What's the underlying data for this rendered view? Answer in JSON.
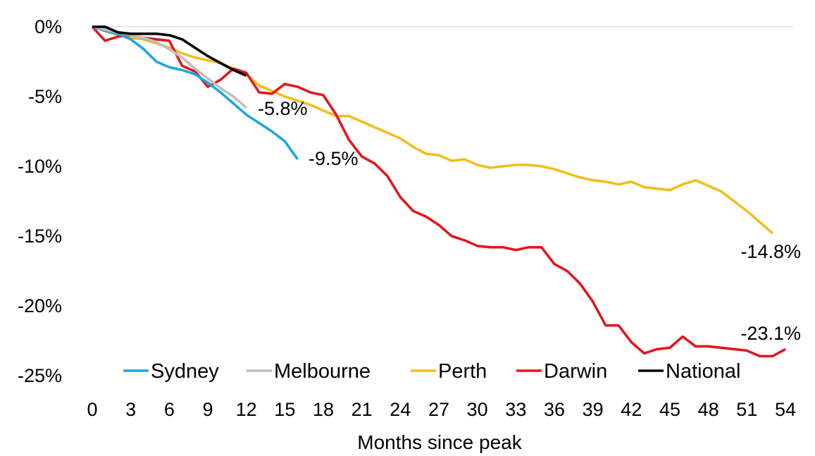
{
  "chart_data": {
    "type": "line",
    "title": "",
    "xlabel": "Months since peak",
    "ylabel": "",
    "xlim": [
      0,
      54
    ],
    "ylim": [
      -25,
      0
    ],
    "x_ticks": [
      0,
      3,
      6,
      9,
      12,
      15,
      18,
      21,
      24,
      27,
      30,
      33,
      36,
      39,
      42,
      45,
      48,
      51,
      54
    ],
    "y_ticks": [
      "0%",
      "-5%",
      "-10%",
      "-15%",
      "-20%",
      "-25%"
    ],
    "y_tick_values": [
      0,
      -5,
      -10,
      -15,
      -20,
      -25
    ],
    "gridlines": "horizontal at 0% only",
    "legend_position": "bottom",
    "series": [
      {
        "name": "Sydney",
        "color": "#1FA7DF",
        "end_label": "-9.5%",
        "x": [
          0,
          1,
          2,
          3,
          4,
          5,
          6,
          7,
          8,
          9,
          10,
          11,
          12,
          13,
          14,
          15,
          16
        ],
        "values": [
          0,
          -0.3,
          -0.5,
          -0.9,
          -1.6,
          -2.5,
          -2.9,
          -3.1,
          -3.4,
          -4.0,
          -4.7,
          -5.5,
          -6.3,
          -6.9,
          -7.5,
          -8.2,
          -9.5
        ]
      },
      {
        "name": "Melbourne",
        "color": "#BFBFBF",
        "end_label": "-5.8%",
        "x": [
          0,
          1,
          2,
          3,
          4,
          5,
          6,
          7,
          8,
          9,
          10,
          11,
          12
        ],
        "values": [
          0,
          -0.2,
          -0.4,
          -0.6,
          -0.8,
          -1.1,
          -1.6,
          -2.2,
          -3.0,
          -3.7,
          -4.4,
          -5.0,
          -5.8
        ]
      },
      {
        "name": "Perth",
        "color": "#F2BE1A",
        "end_label": "-14.8%",
        "x": [
          0,
          1,
          2,
          3,
          4,
          5,
          6,
          7,
          8,
          9,
          10,
          11,
          12,
          13,
          14,
          15,
          16,
          17,
          18,
          19,
          20,
          21,
          22,
          23,
          24,
          25,
          26,
          27,
          28,
          29,
          30,
          31,
          32,
          33,
          34,
          35,
          36,
          37,
          38,
          39,
          40,
          41,
          42,
          43,
          44,
          45,
          46,
          47,
          48,
          49,
          50,
          51,
          52,
          53
        ],
        "values": [
          0,
          -0.3,
          -0.6,
          -0.8,
          -0.9,
          -1.2,
          -1.5,
          -1.9,
          -2.2,
          -2.4,
          -2.6,
          -3.0,
          -3.4,
          -4.2,
          -4.6,
          -5.0,
          -5.3,
          -5.6,
          -6.0,
          -6.4,
          -6.4,
          -6.8,
          -7.2,
          -7.6,
          -8.0,
          -8.6,
          -9.1,
          -9.2,
          -9.6,
          -9.5,
          -9.9,
          -10.1,
          -10.0,
          -9.9,
          -9.9,
          -10.0,
          -10.2,
          -10.5,
          -10.8,
          -11.0,
          -11.1,
          -11.3,
          -11.1,
          -11.5,
          -11.6,
          -11.7,
          -11.3,
          -11.0,
          -11.4,
          -11.8,
          -12.5,
          -13.2,
          -14.0,
          -14.8
        ]
      },
      {
        "name": "Darwin",
        "color": "#E3171B",
        "end_label": "-23.1%",
        "x": [
          0,
          1,
          2,
          3,
          4,
          5,
          6,
          7,
          8,
          9,
          10,
          11,
          12,
          13,
          14,
          15,
          16,
          17,
          18,
          19,
          20,
          21,
          22,
          23,
          24,
          25,
          26,
          27,
          28,
          29,
          30,
          31,
          32,
          33,
          34,
          35,
          36,
          37,
          38,
          39,
          40,
          41,
          42,
          43,
          44,
          45,
          46,
          47,
          48,
          49,
          50,
          51,
          52,
          53,
          54
        ],
        "values": [
          0,
          -1.0,
          -0.7,
          -0.6,
          -0.8,
          -0.9,
          -1.0,
          -2.8,
          -3.2,
          -4.3,
          -3.8,
          -3.0,
          -3.3,
          -4.7,
          -4.8,
          -4.1,
          -4.3,
          -4.7,
          -4.9,
          -6.3,
          -8.1,
          -9.3,
          -9.8,
          -10.7,
          -12.2,
          -13.2,
          -13.6,
          -14.2,
          -15.0,
          -15.3,
          -15.7,
          -15.8,
          -15.8,
          -16.0,
          -15.8,
          -15.8,
          -17.0,
          -17.5,
          -18.4,
          -19.7,
          -21.4,
          -21.4,
          -22.6,
          -23.4,
          -23.1,
          -23.0,
          -22.2,
          -22.9,
          -22.9,
          -23.0,
          -23.1,
          -23.2,
          -23.6,
          -23.6,
          -23.1
        ]
      },
      {
        "name": "National",
        "color": "#000000",
        "end_label": "",
        "x": [
          0,
          1,
          2,
          3,
          4,
          5,
          6,
          7,
          8,
          9,
          10,
          11,
          12
        ],
        "values": [
          0,
          0,
          -0.4,
          -0.5,
          -0.5,
          -0.5,
          -0.6,
          -0.9,
          -1.5,
          -2.1,
          -2.6,
          -3.1,
          -3.5
        ]
      }
    ]
  }
}
